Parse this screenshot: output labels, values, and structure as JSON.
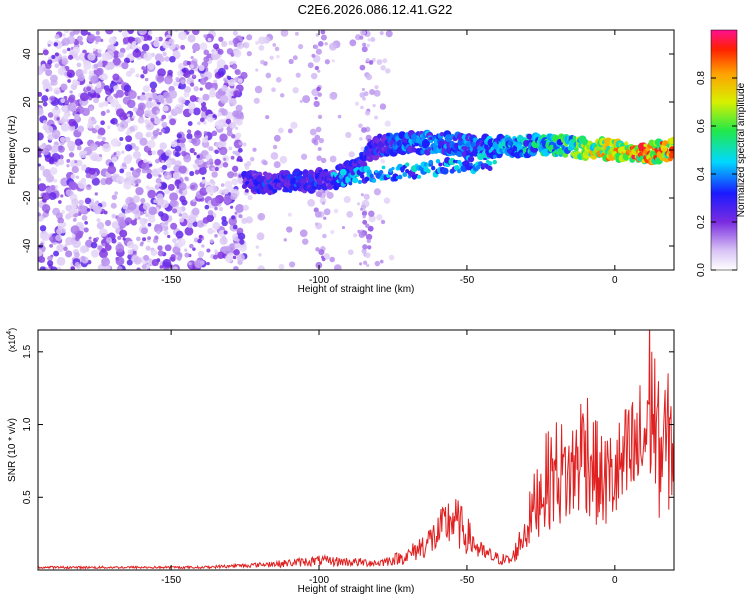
{
  "chart_data": [
    {
      "type": "heatmap",
      "title": "C2E6.2026.086.12.41.G22",
      "xlabel": "Height of straight line (km)",
      "ylabel": "Frequency (Hz)",
      "xlim": [
        -195,
        20
      ],
      "ylim": [
        -50,
        50
      ],
      "xticks": [
        -150,
        -100,
        -50,
        0
      ],
      "yticks": [
        -40,
        -20,
        0,
        20,
        40
      ],
      "colorbar": {
        "label": "Normalized spectral amplitude",
        "range": [
          0.0,
          1.0
        ],
        "ticks": [
          0.0,
          0.2,
          0.4,
          0.6,
          0.8
        ],
        "tick_labels": [
          "0.0",
          "0.2",
          "0.4",
          "0.6",
          "0.8"
        ]
      },
      "ridge": {
        "description": "frequency track of signal",
        "x": [
          -125,
          -115,
          -105,
          -95,
          -88,
          -80,
          -70,
          -60,
          -50,
          -40,
          -30,
          -20,
          -10,
          0,
          10,
          20
        ],
        "y": [
          -13,
          -14,
          -13,
          -12,
          -8,
          2,
          3,
          3,
          2,
          1,
          2,
          2,
          1,
          0,
          -1,
          0
        ],
        "amplitude": [
          0.3,
          0.35,
          0.35,
          0.3,
          0.3,
          0.35,
          0.4,
          0.4,
          0.4,
          0.45,
          0.5,
          0.55,
          0.7,
          0.85,
          0.9,
          0.85
        ]
      }
    },
    {
      "type": "line",
      "xlabel": "Height of straight line (km)",
      "ylabel": "SNR (10 * v/v)",
      "y_multiplier": "(x10",
      "y_multiplier_exp": "4",
      "y_multiplier_close": ")",
      "xlim": [
        -195,
        20
      ],
      "ylim": [
        0,
        1.65
      ],
      "xticks": [
        -150,
        -100,
        -50,
        0
      ],
      "yticks": [
        0.5,
        1.0,
        1.5
      ],
      "ytick_labels": [
        "0.5",
        "1.0",
        "1.5"
      ],
      "color": "#e02020",
      "series": [
        {
          "name": "SNR",
          "x": [
            -195,
            -180,
            -160,
            -140,
            -130,
            -120,
            -110,
            -100,
            -90,
            -80,
            -70,
            -60,
            -55,
            -50,
            -45,
            -40,
            -35,
            -30,
            -25,
            -20,
            -15,
            -10,
            -5,
            0,
            5,
            10,
            12,
            15,
            20
          ],
          "y": [
            0.02,
            0.02,
            0.02,
            0.02,
            0.03,
            0.04,
            0.06,
            0.08,
            0.07,
            0.06,
            0.12,
            0.3,
            0.45,
            0.3,
            0.15,
            0.1,
            0.08,
            0.35,
            0.7,
            0.85,
            0.8,
            1.1,
            0.75,
            0.8,
            0.95,
            1.1,
            1.55,
            1.0,
            1.15
          ]
        }
      ]
    }
  ]
}
